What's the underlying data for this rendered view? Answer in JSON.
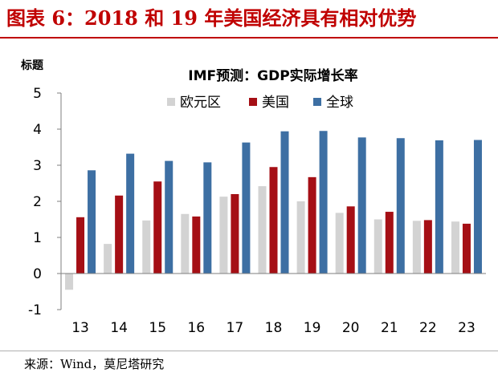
{
  "figure_title": "图表 6：2018 和 19 年美国经济具有相对优势",
  "source_note": "来源：Wind，莫尼塔研究",
  "colors": {
    "title": "#c00000",
    "eurozone": "#d3d3d3",
    "us": "#a50f15",
    "global": "#3d6fa3"
  },
  "chart_data": {
    "type": "bar",
    "title": "IMF预测：GDP实际增长率",
    "ylabel": "标题",
    "xlabel": "",
    "categories": [
      "13",
      "14",
      "15",
      "16",
      "17",
      "18",
      "19",
      "20",
      "21",
      "22",
      "23"
    ],
    "ylim": [
      -1,
      5
    ],
    "yticks": [
      -1,
      0,
      1,
      2,
      3,
      4,
      5
    ],
    "grid": false,
    "legend_position": "top-center",
    "series": [
      {
        "name": "欧元区",
        "color_key": "eurozone",
        "values": [
          -0.45,
          0.82,
          1.47,
          1.65,
          2.13,
          2.42,
          2.0,
          1.68,
          1.5,
          1.46,
          1.44
        ]
      },
      {
        "name": "美国",
        "color_key": "us",
        "values": [
          1.56,
          2.16,
          2.55,
          1.58,
          2.2,
          2.95,
          2.67,
          1.86,
          1.71,
          1.48,
          1.38
        ]
      },
      {
        "name": "全球",
        "color_key": "global",
        "values": [
          2.86,
          3.32,
          3.12,
          3.08,
          3.63,
          3.94,
          3.95,
          3.77,
          3.75,
          3.69,
          3.7
        ]
      }
    ]
  }
}
